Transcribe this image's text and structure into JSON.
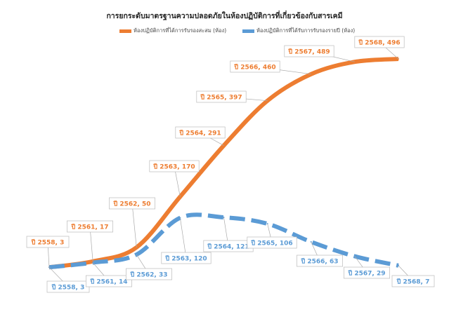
{
  "chart_data": {
    "type": "line",
    "title": "การยกระดับมาตรฐานความปลอดภัยในห้องปฏิบัติการที่เกี่ยวข้องกับสารเคมี",
    "legend_position": "top",
    "grid": false,
    "categories": [
      "ปี 2558",
      "ปี 2561",
      "ปี 2562",
      "ปี 2563",
      "ปี 2564",
      "ปี 2565",
      "ปี 2566",
      "ปี 2567",
      "ปี 2568"
    ],
    "ylim": [
      0,
      496
    ],
    "series": [
      {
        "name": "ห้องปฏิบัติการที่ได้การรับรองสะสม (ห้อง)",
        "color": "#ED7D31",
        "style": "solid",
        "values": [
          3,
          17,
          50,
          170,
          291,
          397,
          460,
          489,
          496
        ]
      },
      {
        "name": "ห้องปฏิบัติการที่ได้รับการรับรองรายปี (ห้อง)",
        "color": "#5B9BD5",
        "style": "dashed",
        "values": [
          3,
          14,
          33,
          120,
          121,
          106,
          63,
          29,
          7
        ]
      }
    ]
  }
}
